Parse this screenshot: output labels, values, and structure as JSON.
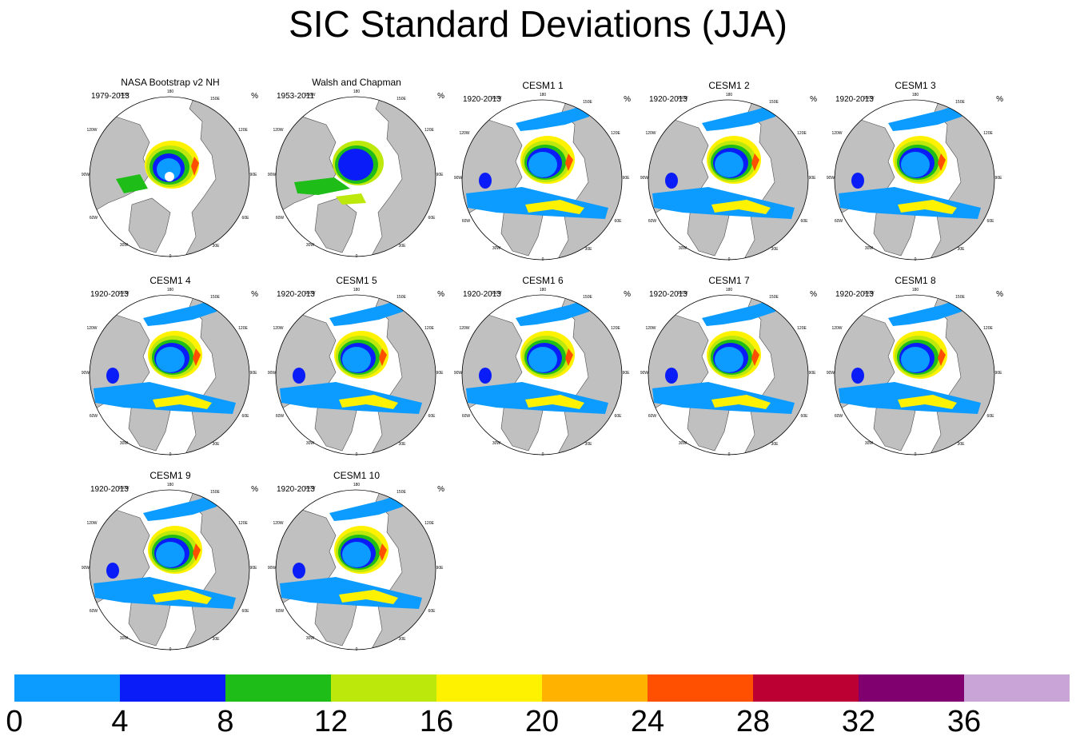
{
  "title": "SIC Standard Deviations (JJA)",
  "units_label": "%",
  "longitude_labels": [
    "180",
    "150W",
    "150E",
    "120W",
    "120E",
    "90W",
    "90E",
    "60W",
    "60E",
    "30W",
    "30E",
    "0"
  ],
  "panels": [
    {
      "title": "NASA Bootstrap v2 NH",
      "period": "1979-2013",
      "style": "obs1"
    },
    {
      "title": "Walsh and Chapman",
      "period": "1953-2011",
      "style": "obs2"
    },
    {
      "title": "CESM1 1",
      "period": "1920-2013",
      "style": "model"
    },
    {
      "title": "CESM1 2",
      "period": "1920-2013",
      "style": "model"
    },
    {
      "title": "CESM1 3",
      "period": "1920-2013",
      "style": "model"
    },
    {
      "title": "CESM1 4",
      "period": "1920-2013",
      "style": "model"
    },
    {
      "title": "CESM1 5",
      "period": "1920-2013",
      "style": "model"
    },
    {
      "title": "CESM1 6",
      "period": "1920-2013",
      "style": "model"
    },
    {
      "title": "CESM1 7",
      "period": "1920-2013",
      "style": "model"
    },
    {
      "title": "CESM1 8",
      "period": "1920-2013",
      "style": "model"
    },
    {
      "title": "CESM1 9",
      "period": "1920-2013",
      "style": "model"
    },
    {
      "title": "CESM1 10",
      "period": "1920-2013",
      "style": "model"
    }
  ],
  "colorbar": {
    "colors": [
      "#0c9bff",
      "#0a1cf7",
      "#1fbd17",
      "#bde80c",
      "#fff200",
      "#ffb300",
      "#ff4f00",
      "#bc0033",
      "#7f006e",
      "#c8a5d6"
    ],
    "labels": [
      "0",
      "4",
      "8",
      "12",
      "16",
      "20",
      "24",
      "28",
      "32",
      "36"
    ]
  },
  "colors": {
    "land": "#c0c0c0",
    "ocean": "#ffffff",
    "coast": "#4a4a4a"
  }
}
